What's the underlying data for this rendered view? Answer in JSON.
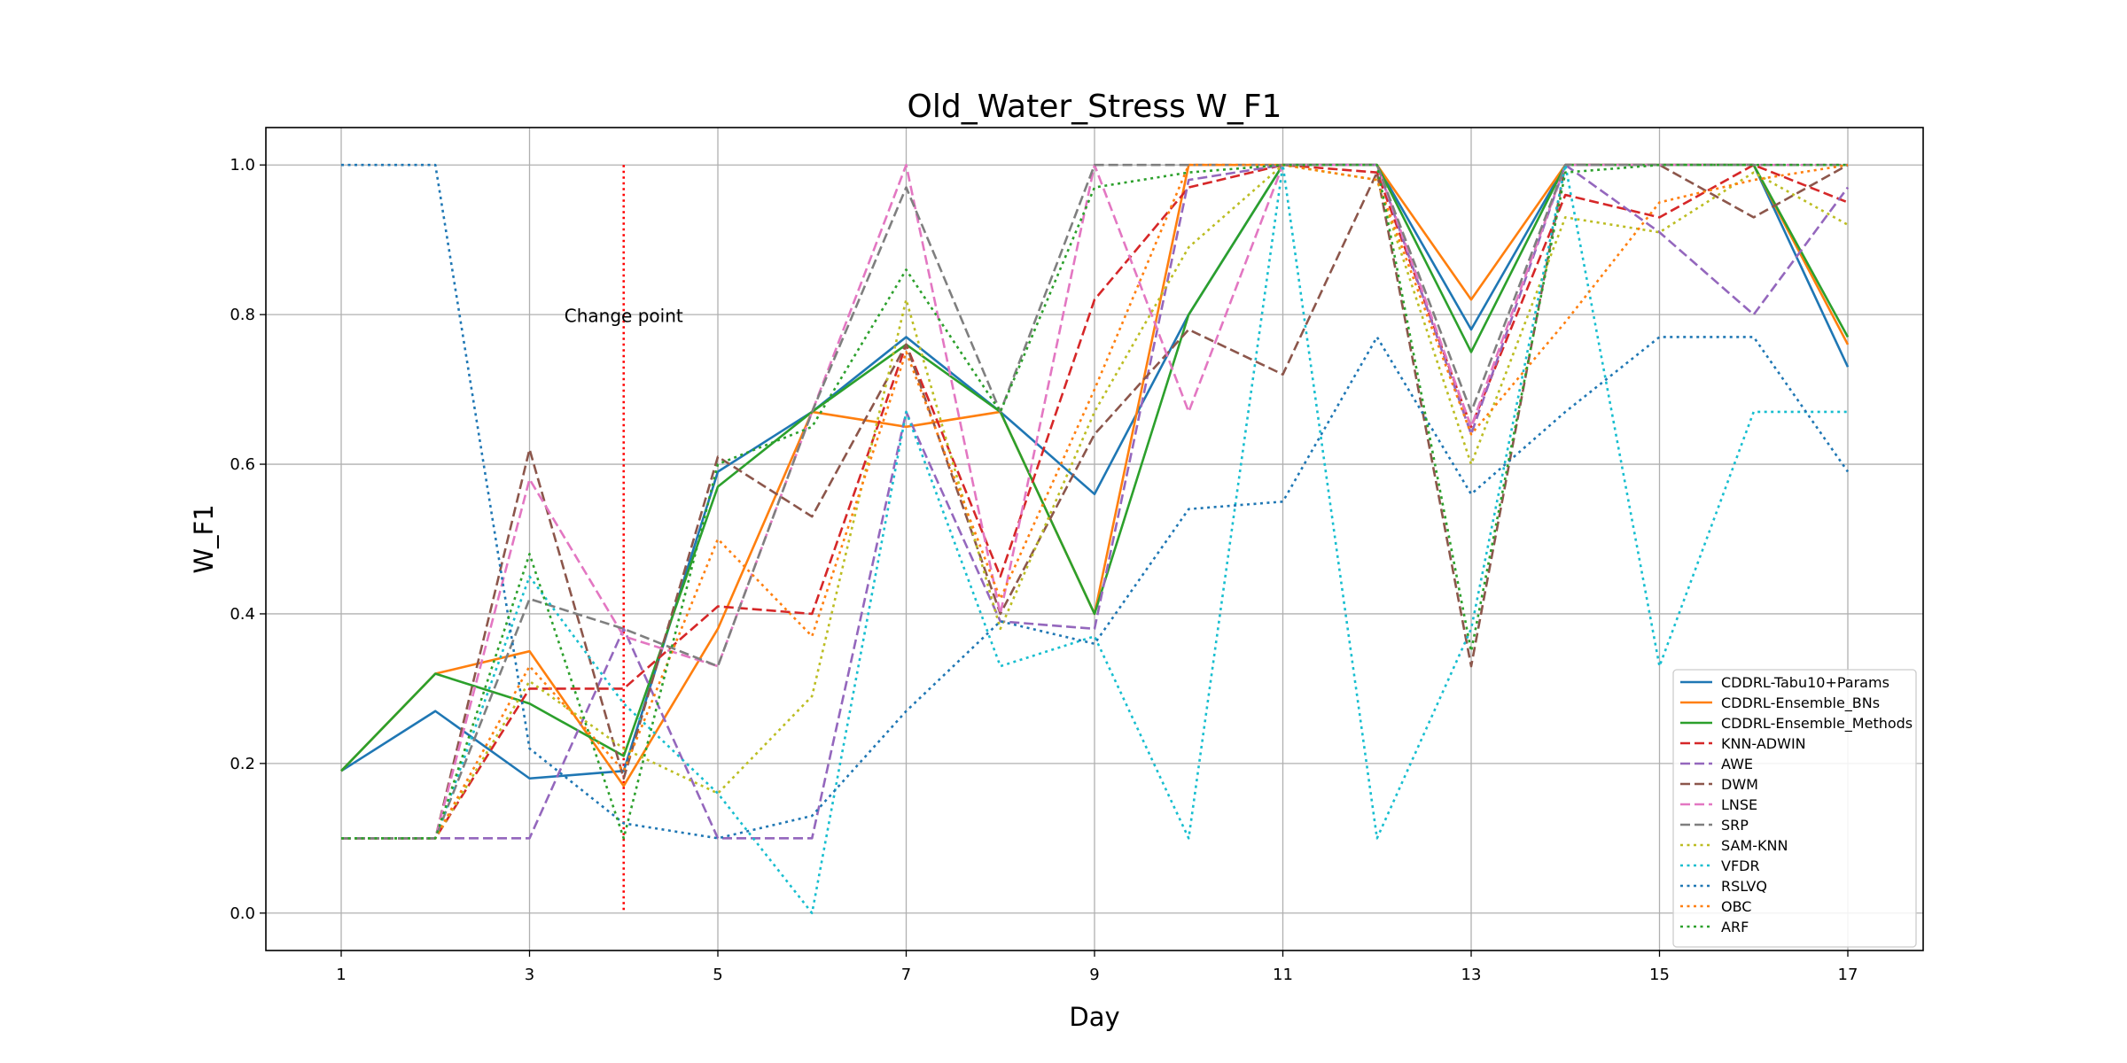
{
  "chart_data": {
    "type": "line",
    "title": "Old_Water_Stress W_F1",
    "xlabel": "Day",
    "ylabel": "W_F1",
    "x": [
      1,
      2,
      3,
      4,
      5,
      6,
      7,
      8,
      9,
      10,
      11,
      12,
      13,
      14,
      15,
      16,
      17
    ],
    "xticks": [
      1,
      3,
      5,
      7,
      9,
      11,
      13,
      15,
      17
    ],
    "yticks": [
      0.0,
      0.2,
      0.4,
      0.6,
      0.8,
      1.0
    ],
    "ytick_labels": [
      "0.0",
      "0.2",
      "0.4",
      "0.6",
      "0.8",
      "1.0"
    ],
    "xlim": [
      0.2,
      17.8
    ],
    "ylim": [
      -0.05,
      1.05
    ],
    "grid": true,
    "legend_position": "lower-right",
    "annotation": {
      "text": "Change point",
      "x": 4,
      "y_from": 0.0,
      "y_to": 1.0,
      "label_y": 0.79,
      "color": "#ff0000"
    },
    "series": [
      {
        "name": "CDDRL-Tabu10+Params",
        "color": "#1f77b4",
        "style": "solid",
        "values": [
          0.19,
          0.27,
          0.18,
          0.19,
          0.59,
          0.67,
          0.77,
          0.67,
          0.56,
          0.8,
          1.0,
          1.0,
          0.78,
          1.0,
          1.0,
          1.0,
          0.73
        ]
      },
      {
        "name": "CDDRL-Ensemble_BNs",
        "color": "#ff7f0e",
        "style": "solid",
        "values": [
          0.19,
          0.32,
          0.35,
          0.17,
          0.38,
          0.67,
          0.65,
          0.67,
          0.4,
          1.0,
          1.0,
          1.0,
          0.82,
          1.0,
          1.0,
          1.0,
          0.76
        ]
      },
      {
        "name": "CDDRL-Ensemble_Methods",
        "color": "#2ca02c",
        "style": "solid",
        "values": [
          0.19,
          0.32,
          0.28,
          0.21,
          0.57,
          0.67,
          0.76,
          0.67,
          0.4,
          0.8,
          1.0,
          1.0,
          0.75,
          1.0,
          1.0,
          1.0,
          0.77
        ]
      },
      {
        "name": "KNN-ADWIN",
        "color": "#d62728",
        "style": "dashed",
        "values": [
          0.1,
          0.1,
          0.3,
          0.3,
          0.41,
          0.4,
          0.76,
          0.45,
          0.82,
          0.97,
          1.0,
          0.99,
          0.65,
          0.96,
          0.93,
          1.0,
          0.95
        ]
      },
      {
        "name": "AWE",
        "color": "#9467bd",
        "style": "dashed",
        "values": [
          0.1,
          0.1,
          0.1,
          0.38,
          0.1,
          0.1,
          0.67,
          0.39,
          0.38,
          0.98,
          1.0,
          1.0,
          0.64,
          1.0,
          0.91,
          0.8,
          0.97
        ]
      },
      {
        "name": "DWM",
        "color": "#8c564b",
        "style": "dashed",
        "values": [
          0.1,
          0.1,
          0.62,
          0.18,
          0.61,
          0.53,
          0.76,
          0.4,
          0.64,
          0.78,
          0.72,
          0.99,
          0.33,
          1.0,
          1.0,
          0.93,
          1.0
        ]
      },
      {
        "name": "LNSE",
        "color": "#e377c2",
        "style": "dashed",
        "values": [
          0.1,
          0.1,
          0.58,
          0.37,
          0.33,
          0.67,
          1.0,
          0.4,
          1.0,
          0.67,
          1.0,
          1.0,
          0.65,
          1.0,
          1.0,
          1.0,
          1.0
        ]
      },
      {
        "name": "SRP",
        "color": "#7f7f7f",
        "style": "dashed",
        "values": [
          0.1,
          0.1,
          0.42,
          0.38,
          0.33,
          0.67,
          0.97,
          0.67,
          1.0,
          1.0,
          1.0,
          1.0,
          0.67,
          1.0,
          1.0,
          1.0,
          1.0
        ]
      },
      {
        "name": "SAM-KNN",
        "color": "#bcbd22",
        "style": "dotted",
        "values": [
          0.1,
          0.1,
          0.31,
          0.22,
          0.16,
          0.29,
          0.82,
          0.38,
          0.67,
          0.89,
          1.0,
          0.98,
          0.6,
          0.93,
          0.91,
          0.99,
          0.92
        ]
      },
      {
        "name": "VFDR",
        "color": "#17becf",
        "style": "dotted",
        "values": [
          0.1,
          0.1,
          0.45,
          0.28,
          0.16,
          0.0,
          0.67,
          0.33,
          0.37,
          0.1,
          1.0,
          0.1,
          0.38,
          1.0,
          0.33,
          0.67,
          0.67
        ]
      },
      {
        "name": "RSLVQ",
        "color": "#1f77b4",
        "style": "dotted",
        "values": [
          1.0,
          1.0,
          0.22,
          0.12,
          0.1,
          0.13,
          0.27,
          0.39,
          0.36,
          0.54,
          0.55,
          0.77,
          0.56,
          0.67,
          0.77,
          0.77,
          0.59
        ]
      },
      {
        "name": "OBC",
        "color": "#ff7f0e",
        "style": "dotted",
        "values": [
          0.1,
          0.1,
          0.33,
          0.19,
          0.5,
          0.37,
          0.75,
          0.42,
          0.7,
          1.0,
          1.0,
          0.98,
          0.64,
          0.79,
          0.95,
          0.98,
          1.0
        ]
      },
      {
        "name": "ARF",
        "color": "#2ca02c",
        "style": "dotted",
        "values": [
          0.1,
          0.1,
          0.48,
          0.1,
          0.6,
          0.65,
          0.86,
          0.67,
          0.97,
          0.99,
          1.0,
          1.0,
          0.35,
          0.99,
          1.0,
          1.0,
          1.0
        ]
      }
    ]
  }
}
